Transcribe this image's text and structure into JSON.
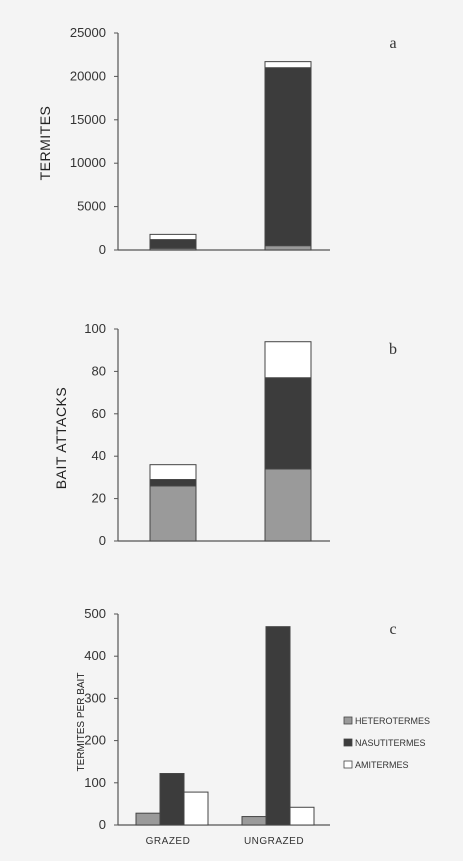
{
  "colors": {
    "heterotermes": "#9a9a9a",
    "nasutitermes": "#3c3c3c",
    "amitermes": "#ffffff",
    "axis": "#555555",
    "background": "#f4f4f4"
  },
  "chart_data": [
    {
      "type": "bar",
      "stacked": true,
      "panel_label": "a",
      "ylabel": "TERMITES",
      "ylim": [
        0,
        25000
      ],
      "yticks": [
        "0",
        "5000",
        "10000",
        "15000",
        "20000",
        "25000"
      ],
      "categories": [
        "GRAZED",
        "UNGRAZED"
      ],
      "series": [
        {
          "name": "HETEROTERMES",
          "values": [
            200,
            500
          ]
        },
        {
          "name": "NASUTITERMES",
          "values": [
            1000,
            20500
          ]
        },
        {
          "name": "AMITERMES",
          "values": [
            600,
            700
          ]
        }
      ]
    },
    {
      "type": "bar",
      "stacked": true,
      "panel_label": "b",
      "ylabel": "BAIT ATTACKS",
      "ylim": [
        0,
        100
      ],
      "yticks": [
        "0",
        "20",
        "40",
        "60",
        "80",
        "100"
      ],
      "categories": [
        "GRAZED",
        "UNGRAZED"
      ],
      "series": [
        {
          "name": "HETEROTERMES",
          "values": [
            26,
            34
          ]
        },
        {
          "name": "NASUTITERMES",
          "values": [
            3,
            43
          ]
        },
        {
          "name": "AMITERMES",
          "values": [
            7,
            17
          ]
        }
      ]
    },
    {
      "type": "bar",
      "stacked": false,
      "panel_label": "c",
      "ylabel": "TERMITES PER BAIT",
      "ylim": [
        0,
        500
      ],
      "yticks": [
        "0",
        "100",
        "200",
        "300",
        "400",
        "500"
      ],
      "categories": [
        "GRAZED",
        "UNGRAZED"
      ],
      "series": [
        {
          "name": "HETEROTERMES",
          "values": [
            28,
            20
          ]
        },
        {
          "name": "NASUTITERMES",
          "values": [
            122,
            470
          ]
        },
        {
          "name": "AMITERMES",
          "values": [
            78,
            42
          ]
        }
      ],
      "legend": {
        "position": "right",
        "items": [
          "HETEROTERMES",
          "NASUTITERMES",
          "AMITERMES"
        ]
      }
    }
  ]
}
